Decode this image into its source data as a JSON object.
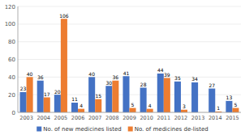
{
  "chart_data": {
    "type": "bar",
    "categories": [
      "2003",
      "2004",
      "2005",
      "2006",
      "2007",
      "2008",
      "2009",
      "2010",
      "2011",
      "2012",
      "2013",
      "2014",
      "2015"
    ],
    "series": [
      {
        "name": "No. of new medicines listed",
        "color": "#4472C4",
        "values": [
          23,
          36,
          20,
          11,
          40,
          30,
          41,
          28,
          44,
          35,
          34,
          27,
          13
        ]
      },
      {
        "name": "No. of medicines de-listed",
        "color": "#ED7D31",
        "values": [
          40,
          17,
          106,
          4,
          15,
          36,
          5,
          4,
          39,
          3,
          0,
          1,
          5
        ],
        "value_labels": [
          "40",
          "17",
          "106",
          "4",
          "15",
          "36",
          "5",
          "4",
          "39",
          "3",
          null,
          "1",
          "5"
        ]
      }
    ],
    "ylim": [
      0,
      120
    ],
    "yticks": [
      0,
      20,
      40,
      60,
      80,
      100,
      120
    ],
    "grid": true,
    "data_labels": true,
    "legend": "bottom"
  }
}
